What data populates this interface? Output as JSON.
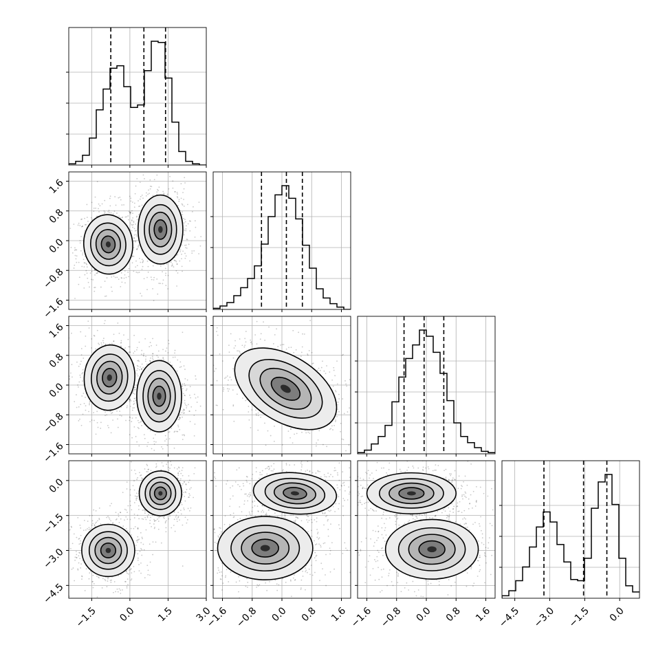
{
  "chart_data": {
    "type": "corner",
    "description_params": [
      "p0",
      "p1",
      "p2",
      "p3"
    ],
    "grid": true,
    "axes_ranges": [
      [
        -2.4,
        3.0
      ],
      [
        -1.85,
        1.85
      ],
      [
        -1.85,
        1.85
      ],
      [
        -5.05,
        0.85
      ]
    ],
    "ticks": [
      {
        "values": [
          -1.5,
          0.0,
          1.5,
          3.0
        ],
        "labels": [
          "−1.5",
          "0.0",
          "1.5",
          "3.0"
        ]
      },
      {
        "values": [
          -1.6,
          -0.8,
          0.0,
          0.8,
          1.6
        ],
        "labels": [
          "−1.6",
          "−0.8",
          "0.0",
          "0.8",
          "1.6"
        ]
      },
      {
        "values": [
          -1.6,
          -0.8,
          0.0,
          0.8,
          1.6
        ],
        "labels": [
          "−1.6",
          "−0.8",
          "0.0",
          "0.8",
          "1.6"
        ]
      },
      {
        "values": [
          -4.5,
          -3.0,
          -1.5,
          0.0
        ],
        "labels": [
          "−4.5",
          "−3.0",
          "−1.5",
          "0.0"
        ]
      }
    ],
    "quantiles": [
      [
        -0.75,
        0.55,
        1.4
      ],
      [
        -0.55,
        0.12,
        0.55
      ],
      [
        -0.6,
        -0.06,
        0.47
      ],
      [
        -3.25,
        -1.55,
        -0.55
      ]
    ],
    "histograms": [
      {
        "counts": [
          1,
          3,
          8,
          22,
          45,
          62,
          79,
          81,
          64,
          47,
          49,
          77,
          101,
          100,
          71,
          35,
          11,
          3,
          1,
          0
        ]
      },
      {
        "counts": [
          1,
          3,
          6,
          12,
          19,
          27,
          38,
          57,
          81,
          100,
          108,
          97,
          79,
          56,
          36,
          18,
          10,
          5,
          2,
          0
        ]
      },
      {
        "counts": [
          1,
          3,
          8,
          14,
          23,
          42,
          62,
          77,
          88,
          100,
          95,
          82,
          65,
          43,
          25,
          14,
          9,
          5,
          2,
          1
        ]
      },
      {
        "counts": [
          2,
          6,
          14,
          25,
          41,
          57,
          69,
          61,
          43,
          29,
          15,
          14,
          32,
          72,
          93,
          99,
          75,
          32,
          10,
          5
        ]
      }
    ],
    "contours": [
      {
        "row": 1,
        "col": 0,
        "sets": [
          {
            "cx": -0.85,
            "cy": -0.1,
            "sx": 0.6,
            "sy": 0.5,
            "rot": 5
          },
          {
            "cx": 1.2,
            "cy": 0.3,
            "sx": 0.55,
            "sy": 0.58,
            "rot": 0
          }
        ]
      },
      {
        "row": 2,
        "col": 0,
        "sets": [
          {
            "cx": -0.8,
            "cy": 0.2,
            "sx": 0.62,
            "sy": 0.55,
            "rot": -5
          },
          {
            "cx": 1.15,
            "cy": -0.3,
            "sx": 0.55,
            "sy": 0.6,
            "rot": 0
          }
        ]
      },
      {
        "row": 2,
        "col": 1,
        "sets": [
          {
            "cx": 0.1,
            "cy": -0.1,
            "sx": 0.95,
            "sy": 0.55,
            "rot": -32
          }
        ]
      },
      {
        "row": 3,
        "col": 0,
        "sets": [
          {
            "cx": -0.85,
            "cy": -3.0,
            "sx": 0.65,
            "sy": 0.7,
            "rot": 0
          },
          {
            "cx": 1.2,
            "cy": -0.55,
            "sx": 0.52,
            "sy": 0.6,
            "rot": 0
          }
        ]
      },
      {
        "row": 3,
        "col": 1,
        "sets": [
          {
            "cx": 0.35,
            "cy": -0.55,
            "sx": 0.7,
            "sy": 0.55,
            "rot": -5
          },
          {
            "cx": -0.45,
            "cy": -2.9,
            "sx": 0.8,
            "sy": 0.85,
            "rot": 0
          }
        ]
      },
      {
        "row": 3,
        "col": 2,
        "sets": [
          {
            "cx": -0.4,
            "cy": -0.55,
            "sx": 0.75,
            "sy": 0.55,
            "rot": 0
          },
          {
            "cx": 0.15,
            "cy": -2.95,
            "sx": 0.78,
            "sy": 0.8,
            "rot": 0
          }
        ]
      }
    ],
    "contour_levels": [
      0.45,
      0.8,
      1.15,
      1.6
    ]
  }
}
